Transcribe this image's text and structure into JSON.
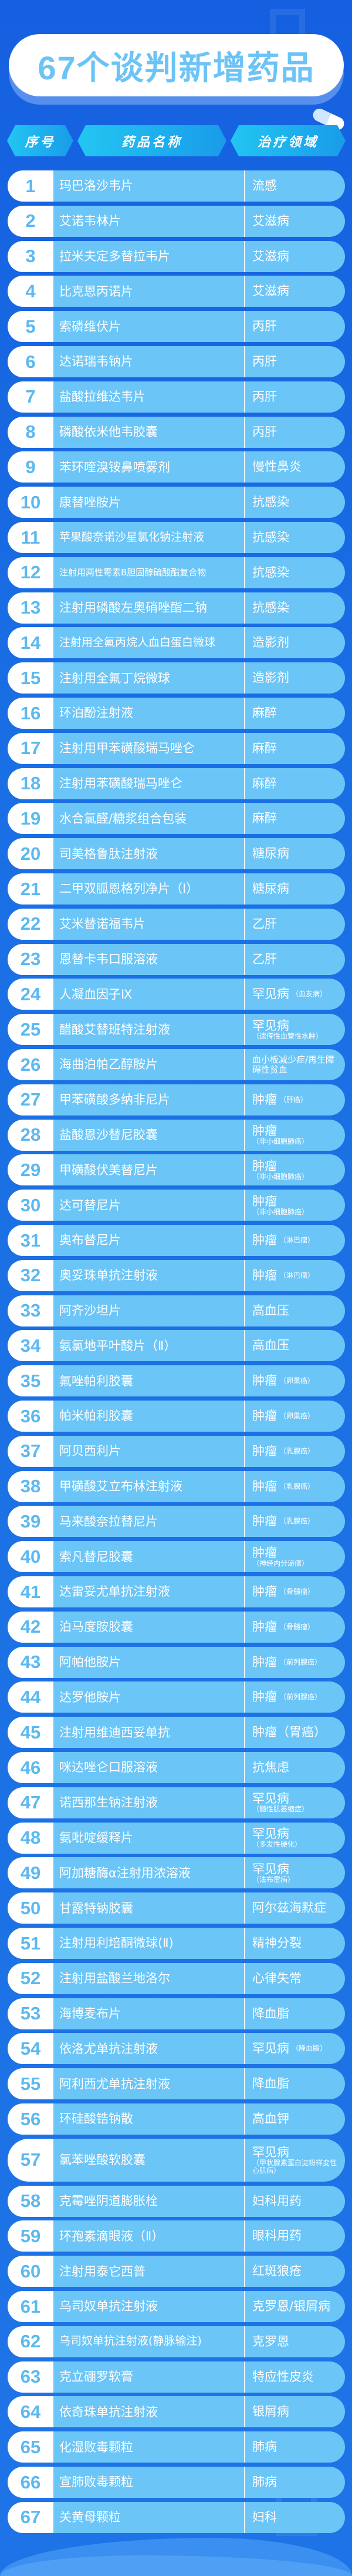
{
  "title": "67个谈判新增药品",
  "headers": {
    "no": "序号",
    "name": "药品名称",
    "area": "治疗领域"
  },
  "colors": {
    "background": "#1a6fe4",
    "row": "#6cc5f7",
    "number": "#5cb9f0",
    "title": "#6cc3f5"
  },
  "rows": [
    {
      "no": "1",
      "name": "玛巴洛沙韦片",
      "area": "流感"
    },
    {
      "no": "2",
      "name": "艾诺韦林片",
      "area": "艾滋病"
    },
    {
      "no": "3",
      "name": "拉米夫定多替拉韦片",
      "area": "艾滋病"
    },
    {
      "no": "4",
      "name": "比克恩丙诺片",
      "area": "艾滋病"
    },
    {
      "no": "5",
      "name": "索磷维伏片",
      "area": "丙肝"
    },
    {
      "no": "6",
      "name": "达诺瑞韦钠片",
      "area": "丙肝"
    },
    {
      "no": "7",
      "name": "盐酸拉维达韦片",
      "area": "丙肝"
    },
    {
      "no": "8",
      "name": "磷酸依米他韦胶囊",
      "area": "丙肝"
    },
    {
      "no": "9",
      "name": "苯环喹溴铵鼻喷雾剂",
      "area": "慢性鼻炎"
    },
    {
      "no": "10",
      "name": "康替唑胺片",
      "area": "抗感染"
    },
    {
      "no": "11",
      "name": "苹果酸奈诺沙星氯化钠注射液",
      "area": "抗感染"
    },
    {
      "no": "12",
      "name": "注射用两性霉素B胆固醇硫酸酯复合物",
      "area": "抗感染"
    },
    {
      "no": "13",
      "name": "注射用磷酸左奥硝唑酯二钠",
      "area": "抗感染"
    },
    {
      "no": "14",
      "name": "注射用全氟丙烷人血白蛋白微球",
      "area": "造影剂"
    },
    {
      "no": "15",
      "name": "注射用全氟丁烷微球",
      "area": "造影剂"
    },
    {
      "no": "16",
      "name": "环泊酚注射液",
      "area": "麻醉"
    },
    {
      "no": "17",
      "name": "注射用甲苯磺酸瑞马唑仑",
      "area": "麻醉"
    },
    {
      "no": "18",
      "name": "注射用苯磺酸瑞马唑仑",
      "area": "麻醉"
    },
    {
      "no": "19",
      "name": "水合氯醛/糖浆组合包装",
      "area": "麻醉"
    },
    {
      "no": "20",
      "name": "司美格鲁肽注射液",
      "area": "糖尿病"
    },
    {
      "no": "21",
      "name": "二甲双胍恩格列净片（Ⅰ）",
      "area": "糖尿病"
    },
    {
      "no": "22",
      "name": "艾米替诺福韦片",
      "area": "乙肝"
    },
    {
      "no": "23",
      "name": "恩替卡韦口服溶液",
      "area": "乙肝"
    },
    {
      "no": "24",
      "name": "人凝血因子Ⅸ",
      "area": "罕见病",
      "sub": "（血友病）"
    },
    {
      "no": "25",
      "name": "醋酸艾替班特注射液",
      "area": "罕见病",
      "sub": "（遗传性血管性水肿）"
    },
    {
      "no": "26",
      "name": "海曲泊帕乙醇胺片",
      "area": "血小板减少症/再生障碍性贫血"
    },
    {
      "no": "27",
      "name": "甲苯磺酸多纳非尼片",
      "area": "肿瘤",
      "sub": "（肝癌）"
    },
    {
      "no": "28",
      "name": "盐酸恩沙替尼胶囊",
      "area": "肿瘤",
      "sub": "（非小细胞肺癌）"
    },
    {
      "no": "29",
      "name": "甲磺酸伏美替尼片",
      "area": "肿瘤",
      "sub": "（非小细胞肺癌）"
    },
    {
      "no": "30",
      "name": "达可替尼片",
      "area": "肿瘤",
      "sub": "（非小细胞肺癌）"
    },
    {
      "no": "31",
      "name": "奥布替尼片",
      "area": "肿瘤",
      "sub": "（淋巴瘤）"
    },
    {
      "no": "32",
      "name": "奥妥珠单抗注射液",
      "area": "肿瘤",
      "sub": "（淋巴瘤）"
    },
    {
      "no": "33",
      "name": "阿齐沙坦片",
      "area": "高血压"
    },
    {
      "no": "34",
      "name": "氨氯地平叶酸片（Ⅱ）",
      "area": "高血压"
    },
    {
      "no": "35",
      "name": "氟唑帕利胶囊",
      "area": "肿瘤",
      "sub": "（卵巢癌）"
    },
    {
      "no": "36",
      "name": "帕米帕利胶囊",
      "area": "肿瘤",
      "sub": "（卵巢癌）"
    },
    {
      "no": "37",
      "name": "阿贝西利片",
      "area": "肿瘤",
      "sub": "（乳腺癌）"
    },
    {
      "no": "38",
      "name": "甲磺酸艾立布林注射液",
      "area": "肿瘤",
      "sub": "（乳腺癌）"
    },
    {
      "no": "39",
      "name": "马来酸奈拉替尼片",
      "area": "肿瘤",
      "sub": "（乳腺癌）"
    },
    {
      "no": "40",
      "name": "索凡替尼胶囊",
      "area": "肿瘤",
      "sub": "（神经内分泌瘤）"
    },
    {
      "no": "41",
      "name": "达雷妥尤单抗注射液",
      "area": "肿瘤",
      "sub": "（骨髓瘤）"
    },
    {
      "no": "42",
      "name": "泊马度胺胶囊",
      "area": "肿瘤",
      "sub": "（骨髓瘤）"
    },
    {
      "no": "43",
      "name": "阿帕他胺片",
      "area": "肿瘤",
      "sub": "（前列腺癌）"
    },
    {
      "no": "44",
      "name": "达罗他胺片",
      "area": "肿瘤",
      "sub": "（前列腺癌）"
    },
    {
      "no": "45",
      "name": "注射用维迪西妥单抗",
      "area": "肿瘤（胃癌）"
    },
    {
      "no": "46",
      "name": "咪达唑仑口服溶液",
      "area": "抗焦虑"
    },
    {
      "no": "47",
      "name": "诺西那生钠注射液",
      "area": "罕见病",
      "sub": "（髓性肌萎缩症）"
    },
    {
      "no": "48",
      "name": "氨吡啶缓释片",
      "area": "罕见病",
      "sub": "（多发性硬化）"
    },
    {
      "no": "49",
      "name": "阿加糖酶α注射用浓溶液",
      "area": "罕见病",
      "sub": "（法布雷病）"
    },
    {
      "no": "50",
      "name": "甘露特钠胶囊",
      "area": "阿尔兹海默症"
    },
    {
      "no": "51",
      "name": "注射用利培酮微球(Ⅱ)",
      "area": "精神分裂"
    },
    {
      "no": "52",
      "name": "注射用盐酸兰地洛尔",
      "area": "心律失常"
    },
    {
      "no": "53",
      "name": "海博麦布片",
      "area": "降血脂"
    },
    {
      "no": "54",
      "name": "依洛尤单抗注射液",
      "area": "罕见病",
      "sub": "（降血脂）"
    },
    {
      "no": "55",
      "name": "阿利西尤单抗注射液",
      "area": "降血脂"
    },
    {
      "no": "56",
      "name": "环硅酸锆钠散",
      "area": "高血钾"
    },
    {
      "no": "57",
      "name": "氯苯唑酸软胶囊",
      "area": "罕见病",
      "sub": "（甲状腺素蛋白淀粉样变性心肌病）"
    },
    {
      "no": "58",
      "name": "克霉唑阴道膨胀栓",
      "area": "妇科用药"
    },
    {
      "no": "59",
      "name": "环孢素滴眼液（Ⅱ）",
      "area": "眼科用药"
    },
    {
      "no": "60",
      "name": "注射用泰它西普",
      "area": "红斑狼疮"
    },
    {
      "no": "61",
      "name": "乌司奴单抗注射液",
      "area": "克罗恩/银屑病"
    },
    {
      "no": "62",
      "name": "乌司奴单抗注射液(静脉输注)",
      "area": "克罗恩"
    },
    {
      "no": "63",
      "name": "克立硼罗软膏",
      "area": "特应性皮炎"
    },
    {
      "no": "64",
      "name": "依奇珠单抗注射液",
      "area": "银屑病"
    },
    {
      "no": "65",
      "name": "化湿败毒颗粒",
      "area": "肺病"
    },
    {
      "no": "66",
      "name": "宣肺败毒颗粒",
      "area": "肺病"
    },
    {
      "no": "67",
      "name": "关黄母颗粒",
      "area": "妇科"
    }
  ]
}
